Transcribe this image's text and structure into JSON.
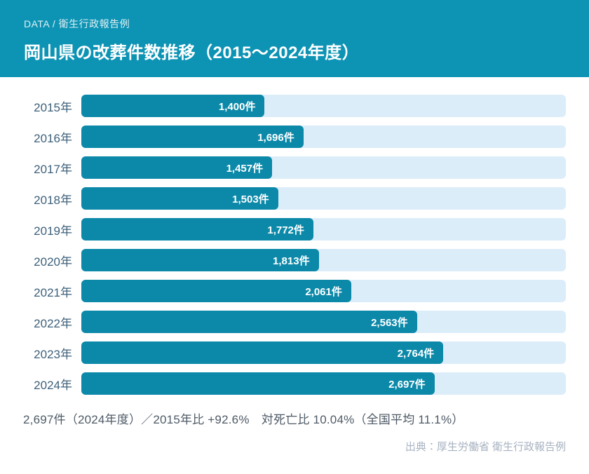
{
  "header": {
    "kicker": "DATA / 衛生行政報告例",
    "title": "岡山県の改葬件数推移（2015〜2024年度）"
  },
  "chart_data": {
    "type": "bar",
    "orientation": "horizontal",
    "title": "岡山県の改葬件数推移（2015〜2024年度）",
    "categories": [
      "2015年",
      "2016年",
      "2017年",
      "2018年",
      "2019年",
      "2020年",
      "2021年",
      "2022年",
      "2023年",
      "2024年"
    ],
    "values": [
      1400,
      1696,
      1457,
      1503,
      1772,
      1813,
      2061,
      2563,
      2764,
      2697
    ],
    "value_labels": [
      "1,400件",
      "1,696件",
      "1,457件",
      "1,503件",
      "1,772件",
      "1,813件",
      "2,061件",
      "2,563件",
      "2,764件",
      "2,697件"
    ],
    "unit": "件",
    "xlim": [
      0,
      3700
    ],
    "grid": false,
    "legend": false,
    "value_label_position": "inside-end"
  },
  "footer": {
    "summary": "2,697件（2024年度）／2015年比 +92.6%　対死亡比 10.04%（全国平均 11.1%）",
    "source": "出典：厚生労働省 衛生行政報告例"
  },
  "colors": {
    "header_bg": "#0d93b4",
    "bar_fill": "#0c89a9",
    "bar_track": "#dcedfa",
    "year_label": "#3d607a",
    "summary_text": "#4e5a66",
    "source_text": "#a7b2c0"
  }
}
